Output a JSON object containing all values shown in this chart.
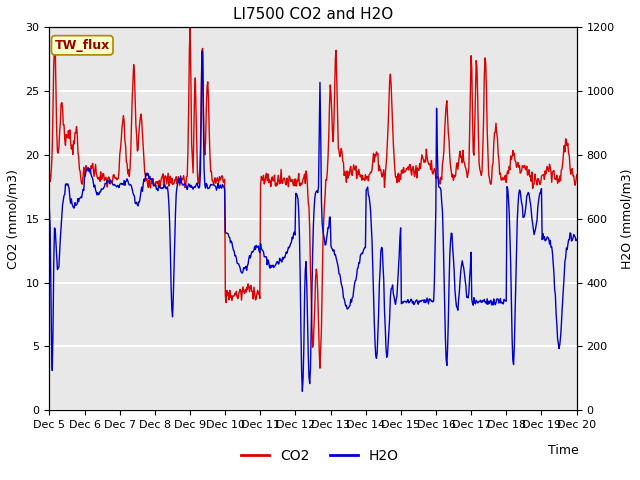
{
  "title": "LI7500 CO2 and H2O",
  "xlabel": "Time",
  "ylabel_left": "CO2 (mmol/m3)",
  "ylabel_right": "H2O (mmol/m3)",
  "ylim_left": [
    0,
    30
  ],
  "ylim_right": [
    0,
    1200
  ],
  "xtick_labels": [
    "Dec 5",
    "Dec 6",
    "Dec 7",
    "Dec 8",
    "Dec 9",
    "Dec 10",
    "Dec 11",
    "Dec 12",
    "Dec 13",
    "Dec 14",
    "Dec 15",
    "Dec 16",
    "Dec 17",
    "Dec 18",
    "Dec 19",
    "Dec 20"
  ],
  "background_color": "#e8e8e8",
  "outer_background": "#ffffff",
  "co2_color": "#dd0000",
  "h2o_color": "#0000cc",
  "legend_label_co2": "CO2",
  "legend_label_h2o": "H2O",
  "annotation_text": "TW_flux",
  "title_fontsize": 11,
  "axis_label_fontsize": 9,
  "tick_fontsize": 8,
  "linewidth": 1.0,
  "yticks_left": [
    0,
    5,
    10,
    15,
    20,
    25,
    30
  ],
  "yticks_right": [
    0,
    200,
    400,
    600,
    800,
    1000,
    1200
  ]
}
